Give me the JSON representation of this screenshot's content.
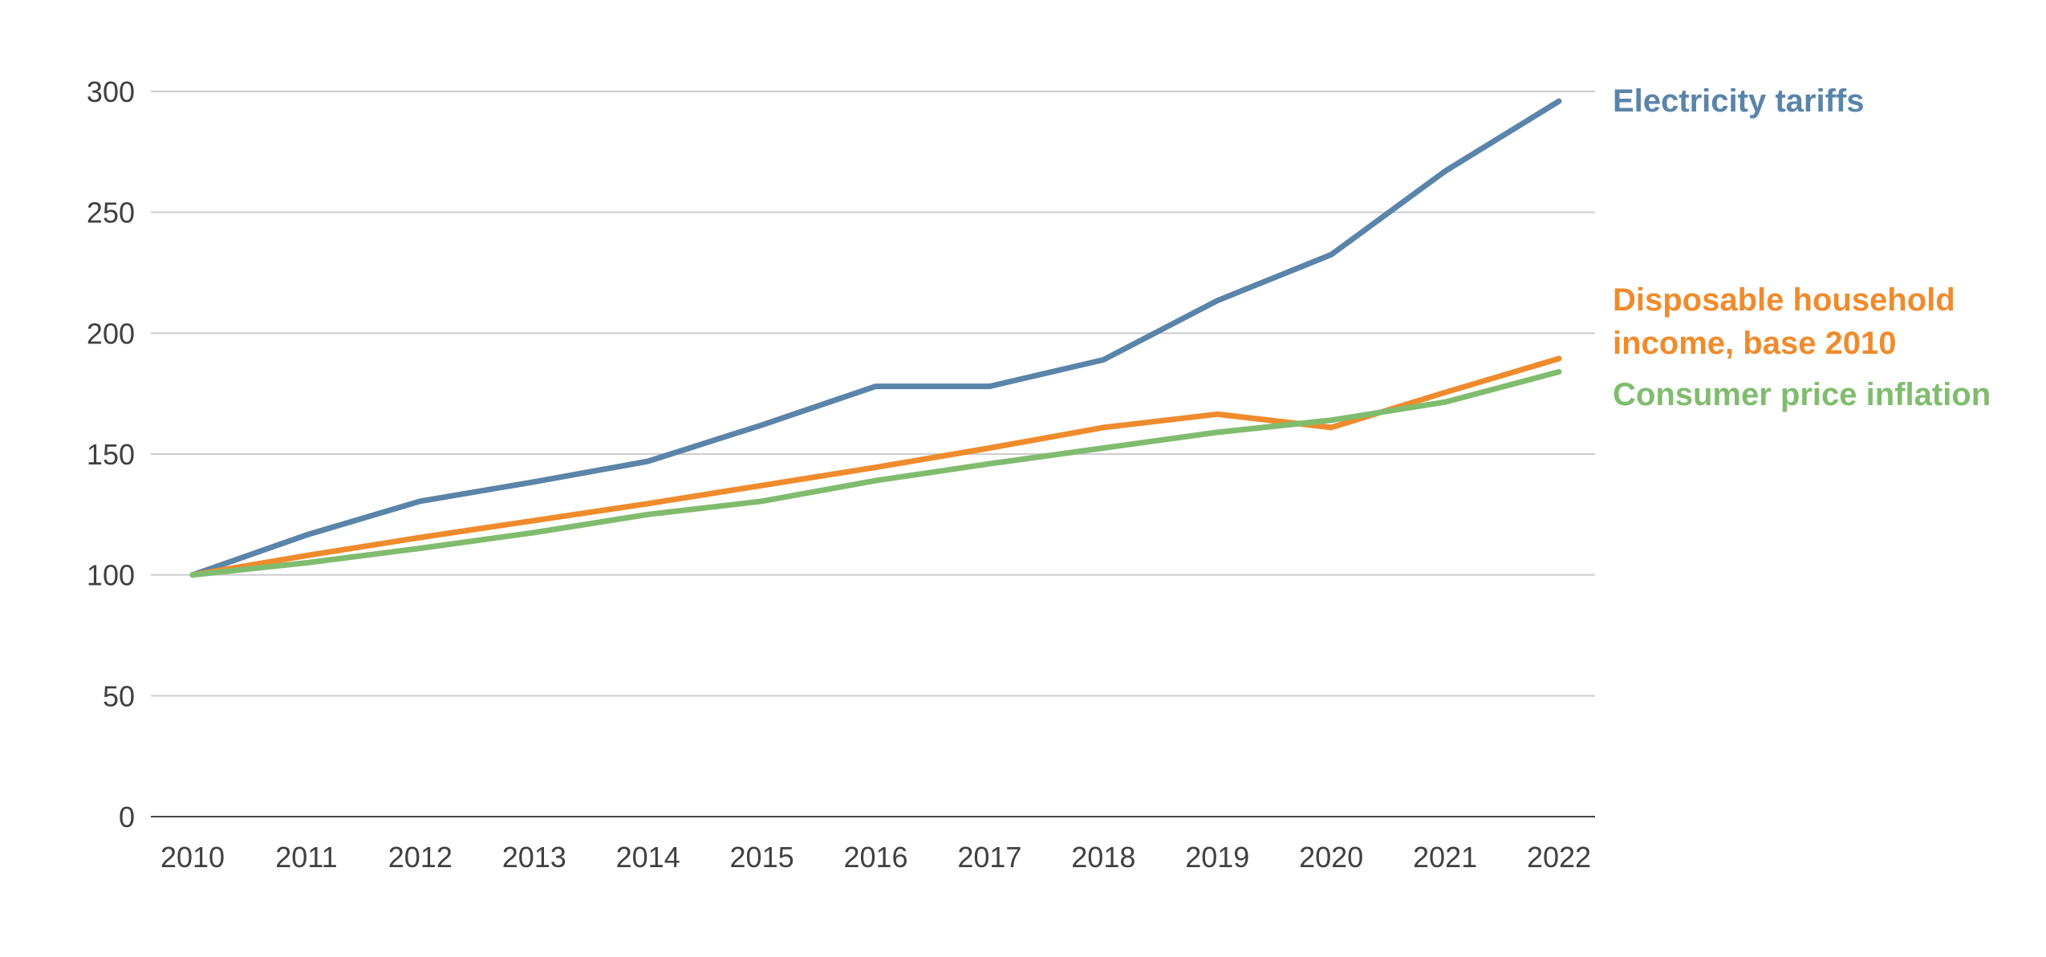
{
  "chart_data": {
    "type": "line",
    "title": "",
    "xlabel": "",
    "ylabel": "",
    "categories": [
      "2010",
      "2011",
      "2012",
      "2013",
      "2014",
      "2015",
      "2016",
      "2017",
      "2018",
      "2019",
      "2020",
      "2021",
      "2022"
    ],
    "y_ticks": [
      "0",
      "50",
      "100",
      "150",
      "200",
      "250",
      "300"
    ],
    "ylim": [
      0,
      300
    ],
    "grid": true,
    "legend": "direct labels at right end of lines",
    "series": [
      {
        "name": "Electricity tariffs",
        "label_lines": [
          "Electricity tariffs"
        ],
        "color": "#5a84a9",
        "points": [
          [
            2010,
            100
          ],
          [
            2011,
            116.5
          ],
          [
            2012,
            130.5
          ],
          [
            2013,
            138.5
          ],
          [
            2014,
            147
          ],
          [
            2015,
            162
          ],
          [
            2016,
            178
          ],
          [
            2016.45,
            178
          ],
          [
            2017,
            178
          ],
          [
            2018,
            189
          ],
          [
            2019,
            213.5
          ],
          [
            2020,
            232.5
          ],
          [
            2021,
            267
          ],
          [
            2022,
            296
          ]
        ]
      },
      {
        "name": "Disposable household income, base 2010",
        "label_lines": [
          "Disposable household",
          "income, base 2010"
        ],
        "color": "#ef8b2c",
        "points": [
          [
            2010,
            100
          ],
          [
            2011,
            108
          ],
          [
            2012,
            115.5
          ],
          [
            2013,
            122.5
          ],
          [
            2014,
            129.5
          ],
          [
            2015,
            137
          ],
          [
            2016,
            144.5
          ],
          [
            2017,
            152.5
          ],
          [
            2018,
            161
          ],
          [
            2019,
            166.5
          ],
          [
            2020,
            161
          ],
          [
            2021,
            175.5
          ],
          [
            2022,
            189.5
          ]
        ]
      },
      {
        "name": "Consumer price inflation",
        "label_lines": [
          "Consumer price inflation"
        ],
        "color": "#80bc6e",
        "points": [
          [
            2010,
            100
          ],
          [
            2011,
            105
          ],
          [
            2012,
            111
          ],
          [
            2013,
            117.5
          ],
          [
            2014,
            125
          ],
          [
            2015,
            130.5
          ],
          [
            2016,
            139
          ],
          [
            2017,
            146
          ],
          [
            2018,
            152.5
          ],
          [
            2019,
            159
          ],
          [
            2020,
            164
          ],
          [
            2021,
            171.5
          ],
          [
            2022,
            184
          ]
        ]
      }
    ]
  }
}
